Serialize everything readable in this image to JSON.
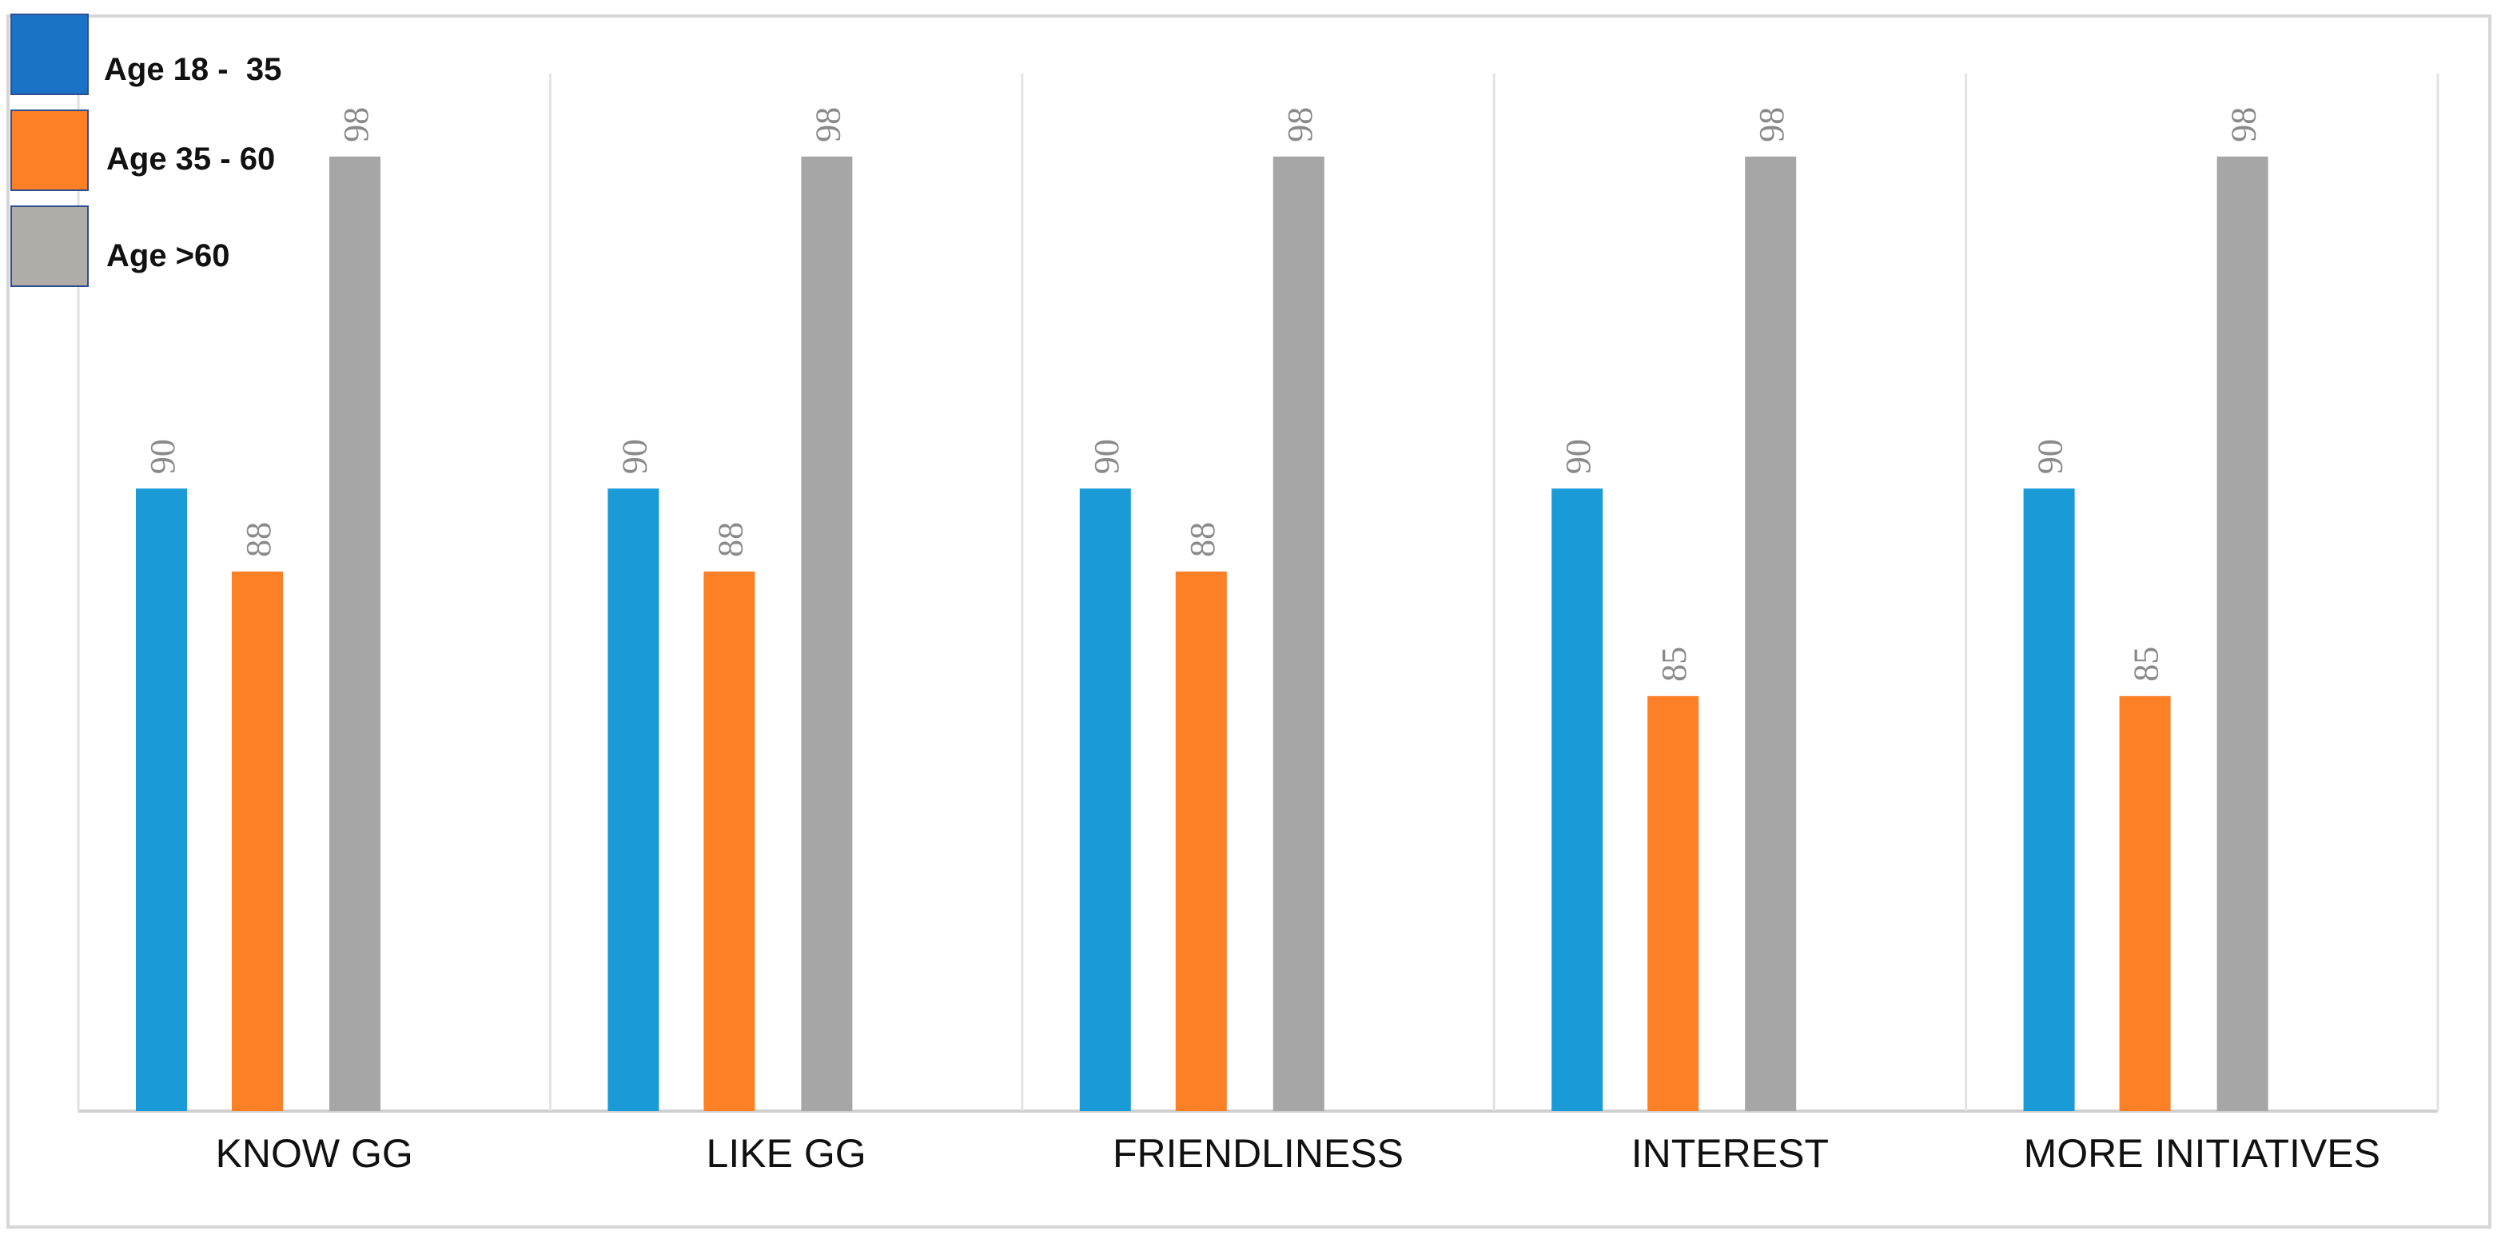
{
  "chart_data": {
    "type": "bar",
    "categories": [
      "KNOW GG",
      "LIKE GG",
      "FRIENDLINESS",
      "INTEREST",
      "MORE INITIATIVES"
    ],
    "series": [
      {
        "name": "Age 18 -  35",
        "values": [
          90,
          90,
          90,
          90,
          90
        ],
        "color": "#1a9ad6",
        "legend_color": "#1b73c8"
      },
      {
        "name": "Age 35 - 60",
        "values": [
          88,
          88,
          88,
          85,
          85
        ],
        "color": "#fd7f26",
        "legend_color": "#fd7f26"
      },
      {
        "name": "Age >60",
        "values": [
          98,
          98,
          98,
          98,
          98
        ],
        "color": "#a6a6a6",
        "legend_color": "#b0aca8"
      }
    ],
    "ylim": [
      75,
      100
    ],
    "grid": "vertical category separators",
    "legend_position": "top-left",
    "data_labels": "rotated, above bars",
    "title": "",
    "xlabel": "",
    "ylabel": ""
  }
}
